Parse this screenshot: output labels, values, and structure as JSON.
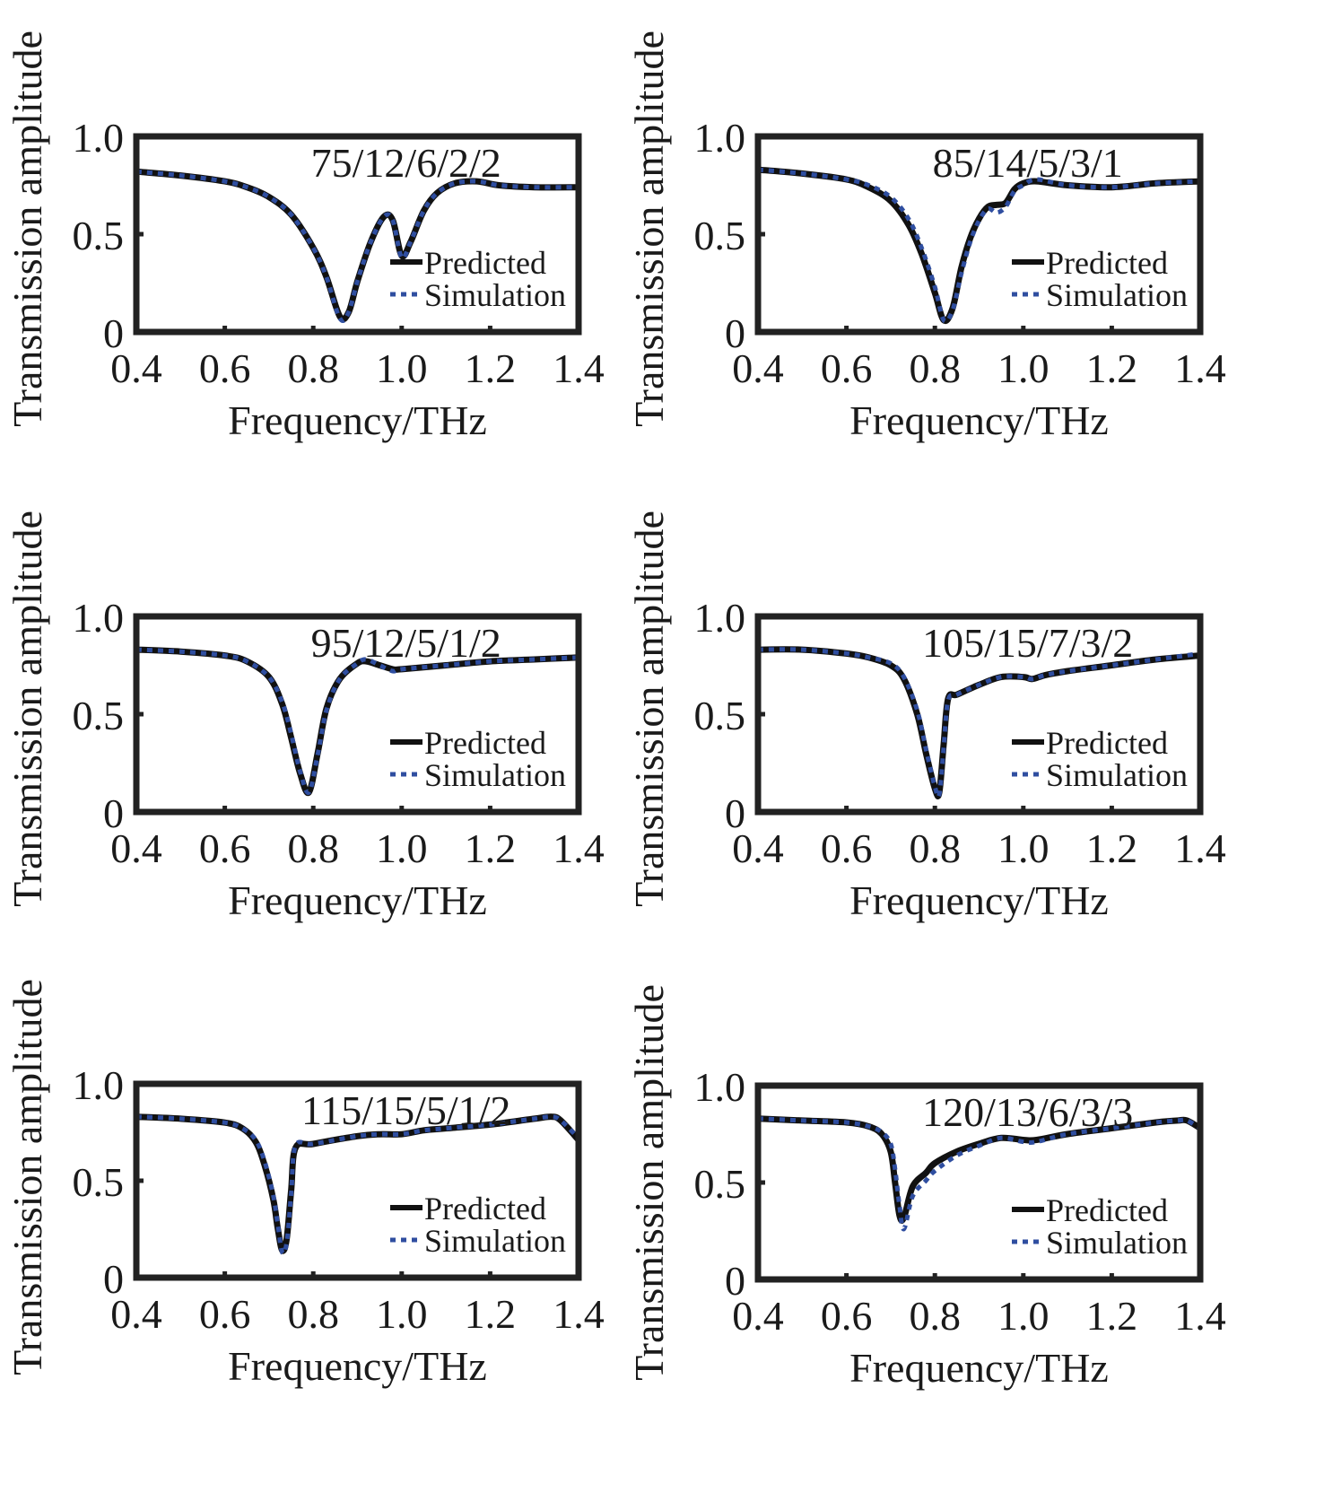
{
  "chart_data": [
    {
      "type": "line",
      "title": "75/12/6/2/2",
      "xlabel": "Frequency/THz",
      "ylabel": "Transmission amplitude",
      "xlim": [
        0.4,
        1.4
      ],
      "ylim": [
        0,
        1.0
      ],
      "xticks": [
        "0.4",
        "0.6",
        "0.8",
        "1.0",
        "1.2",
        "1.4"
      ],
      "yticks": [
        "0",
        "0.5",
        "1.0"
      ],
      "grid": false,
      "legend_position": "bottom-right",
      "series": [
        {
          "name": "Predicted",
          "color": "#111111",
          "style": "solid",
          "x": [
            0.4,
            0.5,
            0.6,
            0.65,
            0.7,
            0.75,
            0.8,
            0.83,
            0.86,
            0.88,
            0.9,
            0.93,
            0.96,
            0.98,
            1.0,
            1.02,
            1.05,
            1.08,
            1.12,
            1.17,
            1.22,
            1.3,
            1.4
          ],
          "y": [
            0.82,
            0.8,
            0.77,
            0.74,
            0.69,
            0.6,
            0.43,
            0.28,
            0.08,
            0.1,
            0.26,
            0.46,
            0.59,
            0.57,
            0.39,
            0.46,
            0.62,
            0.71,
            0.76,
            0.77,
            0.75,
            0.74,
            0.74
          ]
        },
        {
          "name": "Simulation",
          "color": "#2f4ea0",
          "style": "dotted",
          "x": [
            0.4,
            0.5,
            0.6,
            0.65,
            0.7,
            0.75,
            0.8,
            0.83,
            0.86,
            0.88,
            0.9,
            0.93,
            0.96,
            0.98,
            1.0,
            1.02,
            1.05,
            1.08,
            1.12,
            1.17,
            1.22,
            1.3,
            1.4
          ],
          "y": [
            0.82,
            0.8,
            0.77,
            0.74,
            0.69,
            0.6,
            0.43,
            0.28,
            0.07,
            0.1,
            0.26,
            0.46,
            0.59,
            0.57,
            0.38,
            0.46,
            0.62,
            0.71,
            0.76,
            0.77,
            0.75,
            0.74,
            0.74
          ]
        }
      ]
    },
    {
      "type": "line",
      "title": "85/14/5/3/1",
      "xlabel": "Frequency/THz",
      "ylabel": "Transmission amplitude",
      "xlim": [
        0.4,
        1.4
      ],
      "ylim": [
        0,
        1.0
      ],
      "xticks": [
        "0.4",
        "0.6",
        "0.8",
        "1.0",
        "1.2",
        "1.4"
      ],
      "yticks": [
        "0",
        "0.5",
        "1.0"
      ],
      "grid": false,
      "legend_position": "bottom-right",
      "series": [
        {
          "name": "Predicted",
          "color": "#111111",
          "style": "solid",
          "x": [
            0.4,
            0.5,
            0.6,
            0.65,
            0.7,
            0.74,
            0.77,
            0.8,
            0.82,
            0.84,
            0.86,
            0.88,
            0.9,
            0.92,
            0.94,
            0.96,
            0.98,
            1.0,
            1.03,
            1.1,
            1.2,
            1.3,
            1.4
          ],
          "y": [
            0.83,
            0.81,
            0.78,
            0.74,
            0.67,
            0.55,
            0.4,
            0.2,
            0.06,
            0.12,
            0.33,
            0.48,
            0.58,
            0.64,
            0.65,
            0.66,
            0.73,
            0.76,
            0.77,
            0.75,
            0.74,
            0.76,
            0.77
          ]
        },
        {
          "name": "Simulation",
          "color": "#2f4ea0",
          "style": "dotted",
          "x": [
            0.4,
            0.5,
            0.6,
            0.65,
            0.7,
            0.74,
            0.77,
            0.8,
            0.82,
            0.84,
            0.86,
            0.88,
            0.9,
            0.92,
            0.94,
            0.96,
            0.98,
            1.0,
            1.03,
            1.1,
            1.2,
            1.3,
            1.4
          ],
          "y": [
            0.83,
            0.81,
            0.78,
            0.75,
            0.69,
            0.58,
            0.43,
            0.23,
            0.06,
            0.11,
            0.3,
            0.46,
            0.57,
            0.63,
            0.61,
            0.64,
            0.72,
            0.75,
            0.78,
            0.75,
            0.74,
            0.76,
            0.77
          ]
        }
      ]
    },
    {
      "type": "line",
      "title": "95/12/5/1/2",
      "xlabel": "Frequency/THz",
      "ylabel": "Transmission amplitude",
      "xlim": [
        0.4,
        1.4
      ],
      "ylim": [
        0,
        1.0
      ],
      "xticks": [
        "0.4",
        "0.6",
        "0.8",
        "1.0",
        "1.2",
        "1.4"
      ],
      "yticks": [
        "0",
        "0.5",
        "1.0"
      ],
      "grid": false,
      "legend_position": "bottom-right",
      "series": [
        {
          "name": "Predicted",
          "color": "#111111",
          "style": "solid",
          "x": [
            0.4,
            0.5,
            0.6,
            0.65,
            0.7,
            0.73,
            0.75,
            0.77,
            0.79,
            0.81,
            0.83,
            0.86,
            0.9,
            0.92,
            0.95,
            0.98,
            1.0,
            1.1,
            1.2,
            1.3,
            1.4
          ],
          "y": [
            0.83,
            0.82,
            0.8,
            0.77,
            0.69,
            0.55,
            0.38,
            0.2,
            0.1,
            0.3,
            0.53,
            0.68,
            0.76,
            0.77,
            0.75,
            0.73,
            0.73,
            0.75,
            0.77,
            0.78,
            0.79
          ]
        },
        {
          "name": "Simulation",
          "color": "#2f4ea0",
          "style": "dotted",
          "x": [
            0.4,
            0.5,
            0.6,
            0.65,
            0.7,
            0.73,
            0.75,
            0.77,
            0.79,
            0.81,
            0.83,
            0.86,
            0.9,
            0.92,
            0.95,
            0.98,
            1.0,
            1.1,
            1.2,
            1.3,
            1.4
          ],
          "y": [
            0.83,
            0.82,
            0.8,
            0.77,
            0.69,
            0.56,
            0.4,
            0.21,
            0.1,
            0.29,
            0.52,
            0.68,
            0.76,
            0.78,
            0.75,
            0.72,
            0.73,
            0.75,
            0.77,
            0.78,
            0.79
          ]
        }
      ]
    },
    {
      "type": "line",
      "title": "105/15/7/3/2",
      "xlabel": "Frequency/THz",
      "ylabel": "Transmission amplitude",
      "xlim": [
        0.4,
        1.4
      ],
      "ylim": [
        0,
        1.0
      ],
      "xticks": [
        "0.4",
        "0.6",
        "0.8",
        "1.0",
        "1.2",
        "1.4"
      ],
      "yticks": [
        "0",
        "0.5",
        "1.0"
      ],
      "grid": false,
      "legend_position": "bottom-right",
      "series": [
        {
          "name": "Predicted",
          "color": "#111111",
          "style": "solid",
          "x": [
            0.4,
            0.5,
            0.6,
            0.65,
            0.7,
            0.73,
            0.76,
            0.78,
            0.8,
            0.81,
            0.82,
            0.83,
            0.85,
            0.9,
            0.95,
            1.0,
            1.02,
            1.05,
            1.1,
            1.2,
            1.3,
            1.4
          ],
          "y": [
            0.83,
            0.83,
            0.81,
            0.79,
            0.75,
            0.68,
            0.5,
            0.3,
            0.12,
            0.1,
            0.35,
            0.58,
            0.6,
            0.65,
            0.69,
            0.69,
            0.68,
            0.7,
            0.72,
            0.75,
            0.78,
            0.8
          ]
        },
        {
          "name": "Simulation",
          "color": "#2f4ea0",
          "style": "dotted",
          "x": [
            0.4,
            0.5,
            0.6,
            0.65,
            0.7,
            0.73,
            0.76,
            0.78,
            0.8,
            0.81,
            0.82,
            0.83,
            0.85,
            0.9,
            0.95,
            1.0,
            1.02,
            1.05,
            1.1,
            1.2,
            1.3,
            1.4
          ],
          "y": [
            0.83,
            0.83,
            0.81,
            0.79,
            0.76,
            0.69,
            0.52,
            0.32,
            0.13,
            0.09,
            0.33,
            0.57,
            0.6,
            0.65,
            0.69,
            0.69,
            0.68,
            0.7,
            0.72,
            0.75,
            0.78,
            0.81
          ]
        }
      ]
    },
    {
      "type": "line",
      "title": "115/15/5/1/2",
      "xlabel": "Frequency/THz",
      "ylabel": "Transmission amplitude",
      "xlim": [
        0.4,
        1.4
      ],
      "ylim": [
        0,
        1.0
      ],
      "xticks": [
        "0.4",
        "0.6",
        "0.8",
        "1.0",
        "1.2",
        "1.4"
      ],
      "yticks": [
        "0",
        "0.5",
        "1.0"
      ],
      "grid": false,
      "legend_position": "bottom-right",
      "series": [
        {
          "name": "Predicted",
          "color": "#111111",
          "style": "solid",
          "x": [
            0.4,
            0.5,
            0.6,
            0.64,
            0.67,
            0.69,
            0.71,
            0.72,
            0.73,
            0.74,
            0.75,
            0.76,
            0.8,
            0.9,
            0.95,
            1.0,
            1.05,
            1.1,
            1.2,
            1.3,
            1.34,
            1.36,
            1.4
          ],
          "y": [
            0.83,
            0.82,
            0.8,
            0.77,
            0.7,
            0.58,
            0.4,
            0.25,
            0.14,
            0.2,
            0.45,
            0.67,
            0.69,
            0.73,
            0.74,
            0.74,
            0.76,
            0.77,
            0.79,
            0.82,
            0.83,
            0.81,
            0.71
          ]
        },
        {
          "name": "Simulation",
          "color": "#2f4ea0",
          "style": "dotted",
          "x": [
            0.4,
            0.5,
            0.6,
            0.64,
            0.67,
            0.69,
            0.71,
            0.72,
            0.73,
            0.74,
            0.75,
            0.76,
            0.8,
            0.9,
            0.95,
            1.0,
            1.05,
            1.1,
            1.2,
            1.3,
            1.34,
            1.36,
            1.4
          ],
          "y": [
            0.83,
            0.82,
            0.8,
            0.77,
            0.71,
            0.6,
            0.42,
            0.27,
            0.13,
            0.18,
            0.43,
            0.68,
            0.69,
            0.73,
            0.74,
            0.74,
            0.76,
            0.77,
            0.79,
            0.82,
            0.83,
            0.81,
            0.72
          ]
        }
      ]
    },
    {
      "type": "line",
      "title": "120/13/6/3/3",
      "xlabel": "Frequency/THz",
      "ylabel": "Transmission amplitude",
      "xlim": [
        0.4,
        1.4
      ],
      "ylim": [
        0,
        1.0
      ],
      "xticks": [
        "0.4",
        "0.6",
        "0.8",
        "1.0",
        "1.2",
        "1.4"
      ],
      "yticks": [
        "0",
        "0.5",
        "1.0"
      ],
      "grid": false,
      "legend_position": "bottom-right",
      "series": [
        {
          "name": "Predicted",
          "color": "#111111",
          "style": "solid",
          "x": [
            0.4,
            0.5,
            0.6,
            0.65,
            0.68,
            0.7,
            0.71,
            0.72,
            0.73,
            0.75,
            0.78,
            0.8,
            0.85,
            0.9,
            0.95,
            1.0,
            1.03,
            1.1,
            1.2,
            1.3,
            1.35,
            1.37,
            1.4
          ],
          "y": [
            0.83,
            0.82,
            0.81,
            0.79,
            0.75,
            0.66,
            0.5,
            0.33,
            0.32,
            0.48,
            0.55,
            0.6,
            0.66,
            0.7,
            0.73,
            0.72,
            0.72,
            0.75,
            0.78,
            0.81,
            0.82,
            0.82,
            0.78
          ]
        },
        {
          "name": "Simulation",
          "color": "#2f4ea0",
          "style": "dotted",
          "x": [
            0.4,
            0.5,
            0.6,
            0.65,
            0.68,
            0.7,
            0.71,
            0.72,
            0.73,
            0.75,
            0.78,
            0.8,
            0.85,
            0.9,
            0.95,
            1.0,
            1.03,
            1.1,
            1.2,
            1.3,
            1.35,
            1.37,
            1.4
          ],
          "y": [
            0.83,
            0.82,
            0.81,
            0.79,
            0.76,
            0.7,
            0.57,
            0.38,
            0.26,
            0.43,
            0.51,
            0.56,
            0.64,
            0.69,
            0.73,
            0.71,
            0.71,
            0.75,
            0.78,
            0.81,
            0.82,
            0.82,
            0.78
          ]
        }
      ]
    }
  ]
}
